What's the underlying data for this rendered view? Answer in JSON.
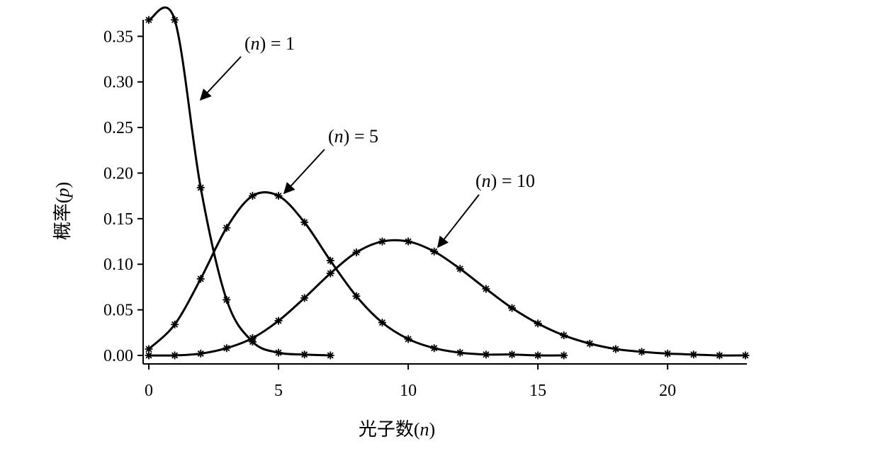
{
  "chart_data": {
    "type": "line",
    "title": "",
    "xlabel": "光子数(n)",
    "ylabel": "概率(p)",
    "xlim": [
      0,
      23
    ],
    "ylim": [
      0,
      0.365
    ],
    "xticks": [
      0,
      5,
      10,
      15,
      20
    ],
    "xtick_labels": [
      "0",
      "5",
      "10",
      "15",
      "20"
    ],
    "yticks": [
      0,
      0.05,
      0.1,
      0.15,
      0.2,
      0.25,
      0.3,
      0.35
    ],
    "ytick_labels": [
      "0.00",
      "0.05",
      "0.10",
      "0.15",
      "0.20",
      "0.25",
      "0.30",
      "0.35"
    ],
    "grid": false,
    "marker": "asterisk",
    "series": [
      {
        "name": "(n) = 1",
        "x": [
          0,
          1,
          2,
          3,
          4,
          5,
          6,
          7
        ],
        "values": [
          0.368,
          0.368,
          0.184,
          0.061,
          0.015,
          0.003,
          0.001,
          0.0
        ]
      },
      {
        "name": "(n) = 5",
        "x": [
          0,
          1,
          2,
          3,
          4,
          5,
          6,
          7,
          8,
          9,
          10,
          11,
          12,
          13,
          14,
          15,
          16
        ],
        "values": [
          0.007,
          0.034,
          0.084,
          0.14,
          0.175,
          0.175,
          0.146,
          0.104,
          0.065,
          0.036,
          0.018,
          0.008,
          0.003,
          0.001,
          0.001,
          0.0,
          0.0
        ]
      },
      {
        "name": "(n) = 10",
        "x": [
          0,
          1,
          2,
          3,
          4,
          5,
          6,
          7,
          8,
          9,
          10,
          11,
          12,
          13,
          14,
          15,
          16,
          17,
          18,
          19,
          20,
          21,
          22,
          23
        ],
        "values": [
          0.0,
          0.0,
          0.002,
          0.008,
          0.019,
          0.038,
          0.063,
          0.09,
          0.113,
          0.125,
          0.125,
          0.114,
          0.095,
          0.073,
          0.052,
          0.035,
          0.022,
          0.013,
          0.007,
          0.004,
          0.002,
          0.001,
          0.0,
          0.0
        ]
      }
    ],
    "annotations": [
      {
        "prefix": "(",
        "var": "n",
        "suffix": ") = 1"
      },
      {
        "prefix": "(",
        "var": "n",
        "suffix": ") = 5"
      },
      {
        "prefix": "(",
        "var": "n",
        "suffix": ") = 10"
      }
    ],
    "xlabel_parts": {
      "prefix": "光子数(",
      "var": "n",
      "suffix": ")"
    },
    "ylabel_parts": {
      "prefix": "概率(",
      "var": "p",
      "suffix": ")"
    }
  }
}
